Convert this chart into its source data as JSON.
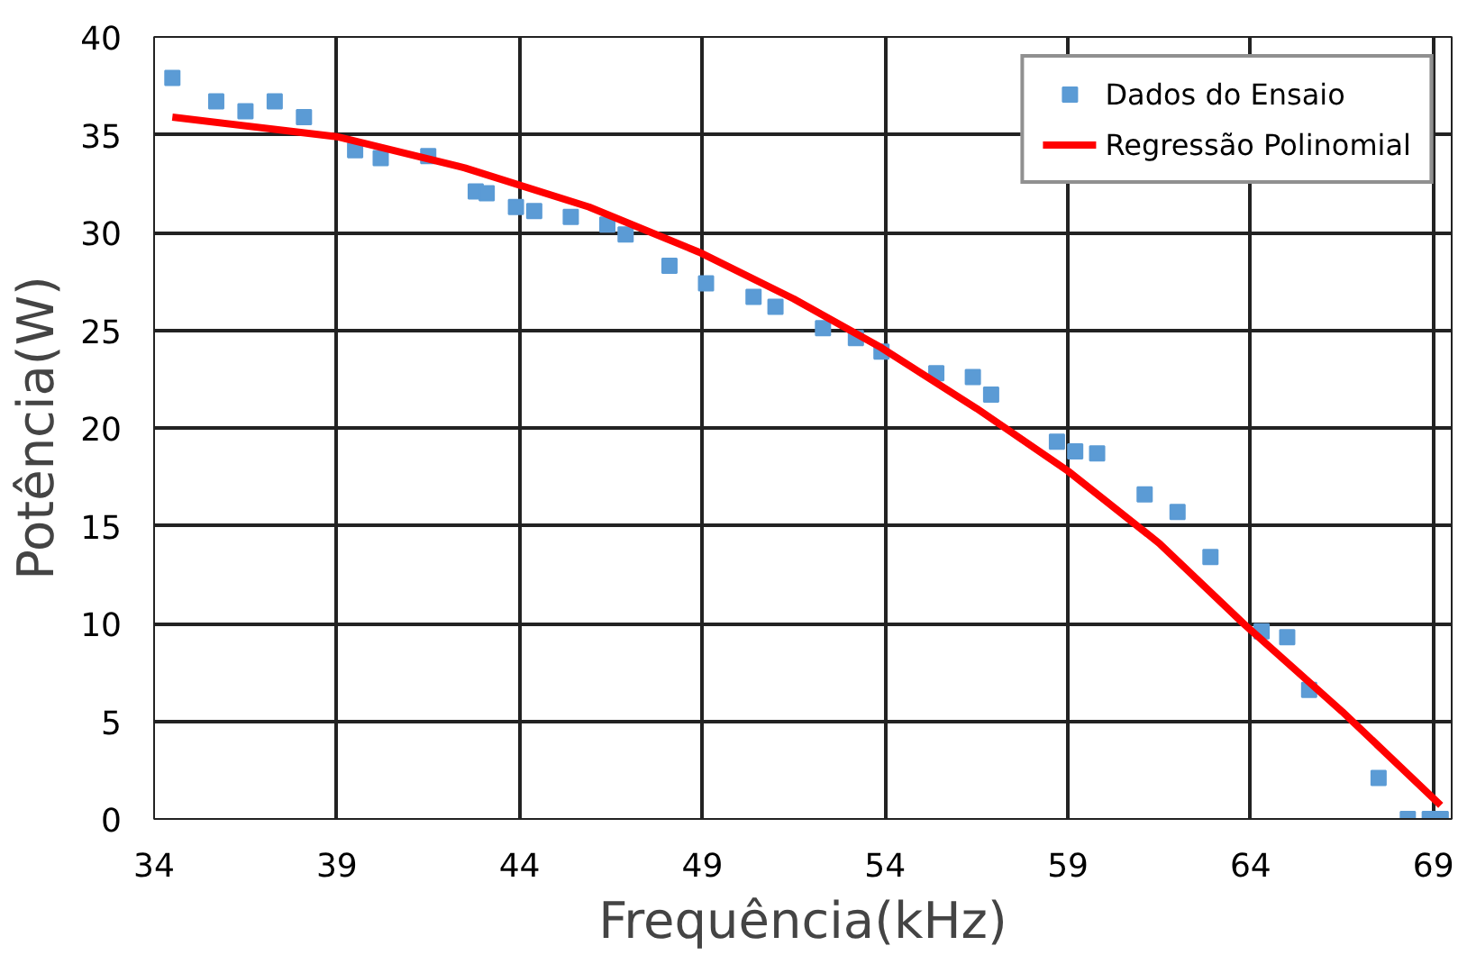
{
  "chart_data": {
    "type": "scatter",
    "xlabel": "Frequência(kHz)",
    "ylabel": "Potência(W)",
    "xlim": [
      34,
      69.5
    ],
    "ylim": [
      0,
      40
    ],
    "xticks": [
      34,
      39,
      44,
      49,
      54,
      59,
      64,
      69
    ],
    "yticks": [
      0,
      5,
      10,
      15,
      20,
      25,
      30,
      35,
      40
    ],
    "grid": true,
    "legend": "top right",
    "series": [
      {
        "name": "Dados do Ensaio",
        "marker": "square",
        "color": "#5b9bd5",
        "x": [
          34.5,
          35.7,
          36.5,
          37.3,
          38.1,
          39.5,
          40.2,
          41.5,
          42.8,
          43.1,
          43.9,
          44.4,
          45.4,
          46.4,
          46.9,
          48.1,
          49.1,
          50.4,
          51.0,
          52.3,
          53.2,
          53.9,
          55.4,
          56.4,
          56.9,
          58.7,
          59.2,
          59.8,
          61.1,
          62.0,
          62.9,
          64.3,
          65.0,
          65.6,
          67.5,
          68.3,
          68.9,
          69.2
        ],
        "values": [
          37.9,
          36.7,
          36.2,
          36.7,
          35.9,
          34.2,
          33.8,
          33.9,
          32.1,
          32.0,
          31.3,
          31.1,
          30.8,
          30.4,
          29.9,
          28.3,
          27.4,
          26.7,
          26.2,
          25.1,
          24.6,
          23.9,
          22.8,
          22.6,
          21.7,
          19.3,
          18.8,
          18.7,
          16.6,
          15.7,
          13.4,
          9.6,
          9.3,
          6.6,
          2.1,
          0,
          0,
          0
        ]
      },
      {
        "name": "Regressão Polinomial",
        "type": "line",
        "color": "#ff0000",
        "line_style": "solid",
        "marker": "none",
        "x": [
          34.5,
          39,
          42.5,
          45.9,
          48.9,
          51.5,
          53.9,
          56.5,
          59,
          61.5,
          63.8,
          66.5,
          69.2
        ],
        "values": [
          35.9,
          34.9,
          33.3,
          31.3,
          29.0,
          26.6,
          24.1,
          21.0,
          17.8,
          14.1,
          10.0,
          5.5,
          0.7
        ]
      }
    ]
  }
}
